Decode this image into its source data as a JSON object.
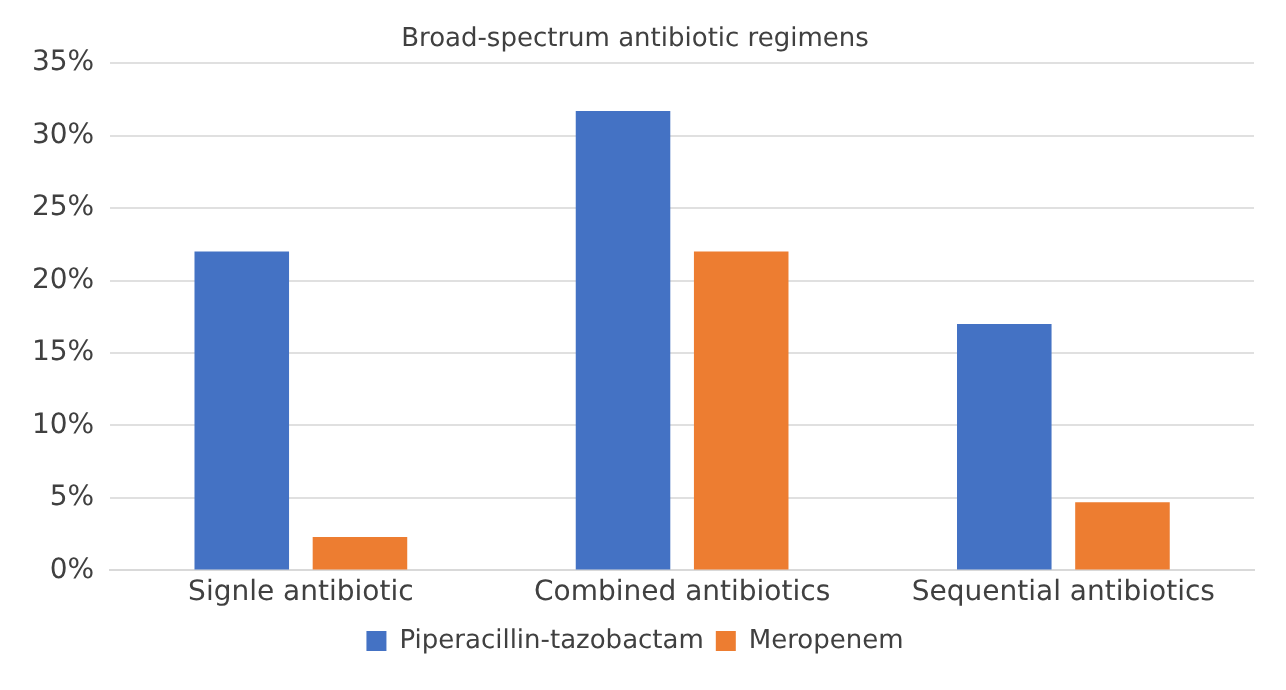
{
  "chart_data": {
    "type": "bar",
    "title": "Broad-spectrum antibiotic regimens",
    "categories": [
      "Signle antibiotic",
      "Combined antibiotics",
      "Sequential antibiotics"
    ],
    "series": [
      {
        "name": "Piperacillin-tazobactam",
        "color": "#4472c4",
        "values": [
          22,
          31.7,
          17
        ]
      },
      {
        "name": "Meropenem",
        "color": "#ed7d31",
        "values": [
          2.3,
          22,
          4.7
        ]
      }
    ],
    "ylim": [
      0,
      35
    ],
    "yticks": [
      {
        "value": 0,
        "label": "0%"
      },
      {
        "value": 5,
        "label": "5%"
      },
      {
        "value": 10,
        "label": "10%"
      },
      {
        "value": 15,
        "label": "15%"
      },
      {
        "value": 20,
        "label": "20%"
      },
      {
        "value": 25,
        "label": "25%"
      },
      {
        "value": 30,
        "label": "30%"
      },
      {
        "value": 35,
        "label": "35%"
      }
    ],
    "grid": "y",
    "legend": "bottom"
  }
}
